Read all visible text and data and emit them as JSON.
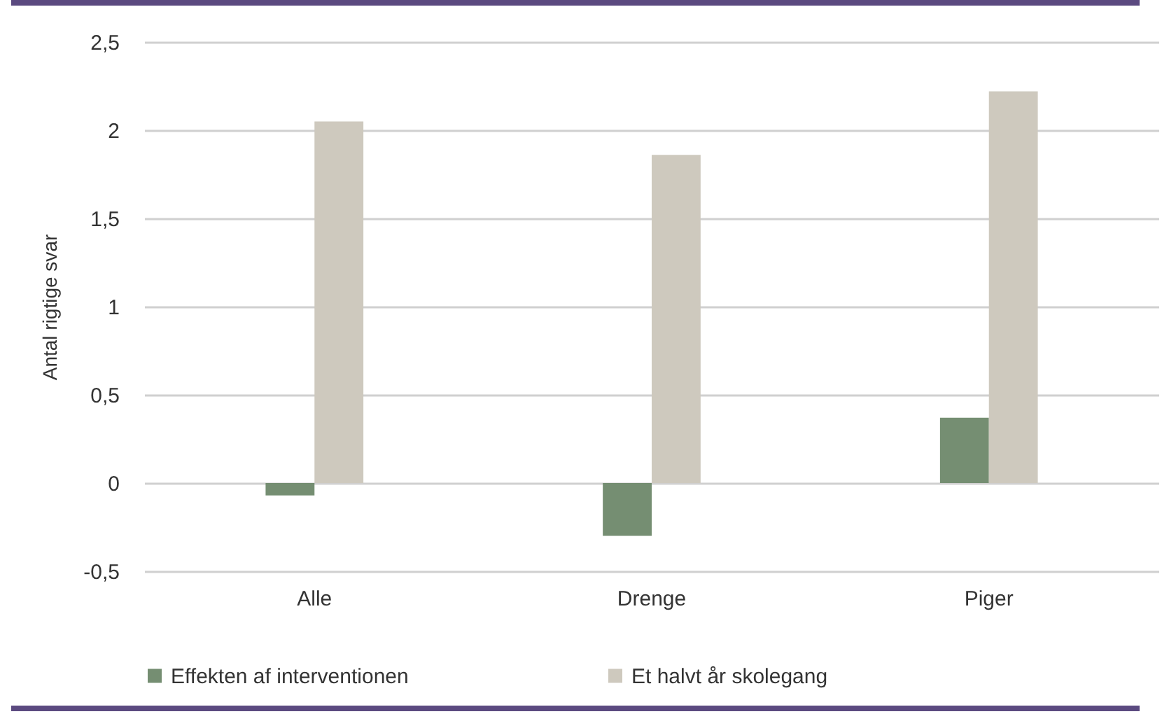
{
  "chart_data": {
    "type": "bar",
    "ylabel": "Antal rigtige svar",
    "categories": [
      "Alle",
      "Drenge",
      "Piger"
    ],
    "series": [
      {
        "name": "Effekten af interventionen",
        "color": "#758e72",
        "values": [
          -0.07,
          -0.3,
          0.37
        ]
      },
      {
        "name": "Et halvt år skolegang",
        "color": "#cec9be",
        "values": [
          2.05,
          1.86,
          2.22
        ]
      }
    ],
    "ylim": [
      -0.5,
      2.5
    ],
    "yticks": [
      {
        "value": -0.5,
        "label": "-0,5"
      },
      0,
      {
        "value": 0.5,
        "label": "0,5"
      },
      1,
      {
        "value": 1.5,
        "label": "1,5"
      },
      2,
      {
        "value": 2.5,
        "label": "2,5"
      }
    ],
    "grid": "y",
    "legend": "bottom"
  }
}
